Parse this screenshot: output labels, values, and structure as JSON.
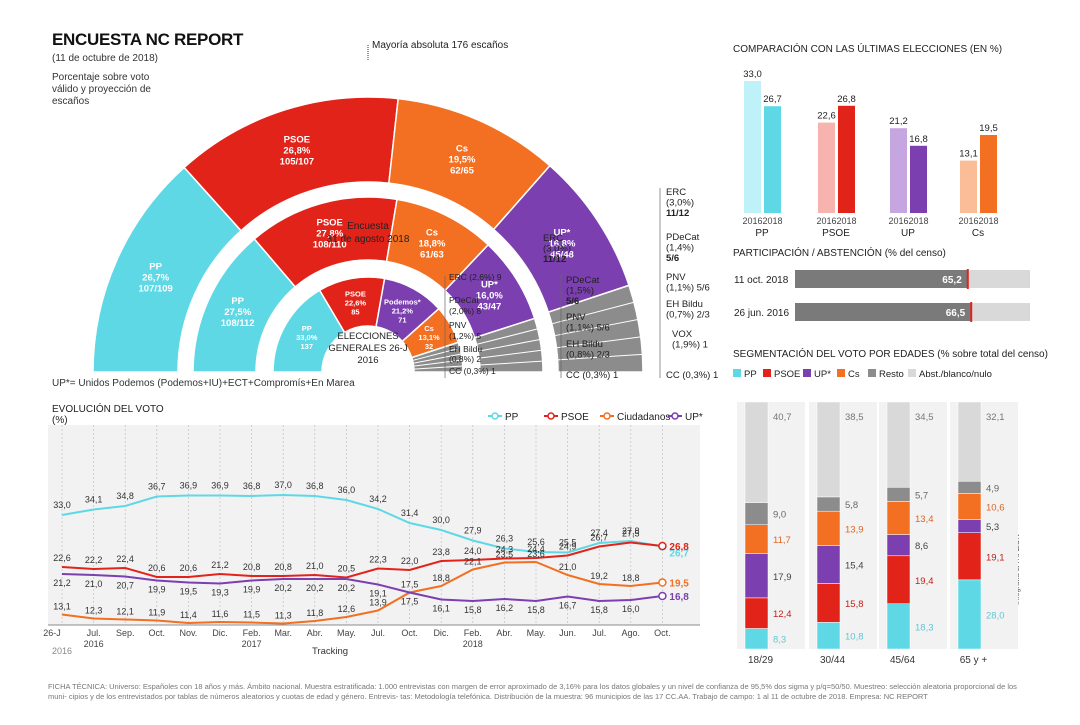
{
  "header": {
    "title": "ENCUESTA NC REPORT",
    "date": "(11 de octubre de 2018)",
    "subtitle": "Porcentaje sobre voto válido y proyección de escaños",
    "majority": "Mayoría absoluta 176 escaños",
    "up_note": "UP*= Unidos Podemos (Podemos+IU)+ECT+Compromís+En Marea",
    "credit": "Infografía LA RAZÓN"
  },
  "colors": {
    "pp": "#5fd8e6",
    "psoe": "#e2231a",
    "up": "#7b3fb0",
    "cs": "#f36f21",
    "resto": "#8c8c8c",
    "abs": "#d9d9d9"
  },
  "chart_data": [
    {
      "type": "pie",
      "title": "Porcentaje sobre voto válido y proyección de escaños",
      "rings": [
        {
          "name": "Outer",
          "slices": [
            {
              "party": "PP",
              "value": 26.7,
              "pct_label": "26,7%",
              "seats": "107/109"
            },
            {
              "party": "PSOE",
              "value": 26.8,
              "pct_label": "26,8%",
              "seats": "105/107"
            },
            {
              "party": "Cs",
              "value": 19.5,
              "pct_label": "19,5%",
              "seats": "62/65"
            },
            {
              "party": "UP*",
              "value": 16.8,
              "pct_label": "16,8%",
              "seats": "45/48"
            },
            {
              "party": "Resto",
              "value": 10.2,
              "pct_label": "",
              "seats": ""
            }
          ],
          "others": [
            {
              "name": "ERC",
              "pct": "(3,0%)",
              "seats": "11/12"
            },
            {
              "name": "PDeCat",
              "pct": "(1,4%)",
              "seats": "5/6"
            },
            {
              "name": "PNV",
              "pct": "(1,1%)",
              "seats": "5/6"
            },
            {
              "name": "EH Bildu",
              "pct": "(0,7%)",
              "seats": "2/3"
            },
            {
              "name": "VOX",
              "pct": "(1,9%)",
              "seats": "1"
            },
            {
              "name": "CC",
              "pct": "(0,3%)",
              "seats": "1"
            }
          ]
        },
        {
          "name": "Encuesta 31 de agosto 2018",
          "slices": [
            {
              "party": "PP",
              "value": 27.5,
              "pct_label": "27,5%",
              "seats": "108/112"
            },
            {
              "party": "PSOE",
              "value": 27.8,
              "pct_label": "27,8%",
              "seats": "108/110"
            },
            {
              "party": "Cs",
              "value": 18.8,
              "pct_label": "18,8%",
              "seats": "61/63"
            },
            {
              "party": "UP*",
              "value": 16.0,
              "pct_label": "16,0%",
              "seats": "43/47"
            },
            {
              "party": "Resto",
              "value": 9.9,
              "pct_label": "",
              "seats": ""
            }
          ],
          "others": [
            {
              "name": "ERC",
              "pct": "(3,0%)",
              "seats": "11/12"
            },
            {
              "name": "PDeCat",
              "pct": "(1,5%)",
              "seats": "5/6"
            },
            {
              "name": "PNV",
              "pct": "(1,1%)",
              "seats": "5/6"
            },
            {
              "name": "EH Bildu",
              "pct": "(0,8%)",
              "seats": "2/3"
            },
            {
              "name": "CC",
              "pct": "(0,3%)",
              "seats": "1"
            }
          ]
        },
        {
          "name": "ELECCIONES GENERALES 26-J 2016",
          "slices": [
            {
              "party": "PP",
              "value": 33.0,
              "pct_label": "33,0%",
              "seats": "137"
            },
            {
              "party": "PSOE",
              "value": 22.6,
              "pct_label": "22,6%",
              "seats": "85"
            },
            {
              "party": "Podemos*",
              "value": 21.2,
              "pct_label": "21,2%",
              "seats": "71"
            },
            {
              "party": "Cs",
              "value": 13.1,
              "pct_label": "13,1%",
              "seats": "32"
            },
            {
              "party": "Resto",
              "value": 10.1,
              "pct_label": "",
              "seats": ""
            }
          ],
          "others": [
            {
              "name": "ERC",
              "pct": "(2,6%)",
              "seats": "9"
            },
            {
              "name": "PDeCat",
              "pct": "(2,0%)",
              "seats": "8"
            },
            {
              "name": "PNV",
              "pct": "(1,2%)",
              "seats": "5"
            },
            {
              "name": "EH Bildu",
              "pct": "(0,8%)",
              "seats": "2"
            },
            {
              "name": "CC",
              "pct": "(0,3%)",
              "seats": "1"
            }
          ]
        }
      ]
    },
    {
      "type": "bar",
      "title": "COMPARACIÓN CON LAS ÚLTIMAS ELECCIONES (EN %)",
      "groups": [
        "PP",
        "PSOE",
        "UP",
        "Cs"
      ],
      "categories": [
        "2016",
        "2018"
      ],
      "values": [
        {
          "party": "PP",
          "y2016": 33.0,
          "y2018": 26.7,
          "l2016": "33,0",
          "l2018": "26,7"
        },
        {
          "party": "PSOE",
          "y2016": 22.6,
          "y2018": 26.8,
          "l2016": "22,6",
          "l2018": "26,8"
        },
        {
          "party": "UP",
          "y2016": 21.2,
          "y2018": 16.8,
          "l2016": "21,2",
          "l2018": "16,8"
        },
        {
          "party": "Cs",
          "y2016": 13.1,
          "y2018": 19.5,
          "l2016": "13,1",
          "l2018": "19,5"
        }
      ]
    },
    {
      "type": "bar",
      "title": "PARTICIPACIÓN / ABSTENCIÓN (% del censo)",
      "rows": [
        {
          "label": "11 oct. 2018",
          "participacion": 65.2,
          "abstencion": 34.8,
          "lp": "65,2",
          "la": "34,8"
        },
        {
          "label": "26 jun. 2016",
          "participacion": 66.5,
          "abstencion": 33.5,
          "lp": "66,5",
          "la": "33,5"
        }
      ]
    },
    {
      "type": "bar",
      "title": "SEGMENTACIÓN DEL VOTO POR EDADES (% sobre total del censo)",
      "legend": [
        "PP",
        "PSOE",
        "UP*",
        "Cs",
        "Resto",
        "Abst./blanco/nulo"
      ],
      "categories": [
        "18/29",
        "30/44",
        "45/64",
        "65 y +"
      ],
      "series": [
        {
          "name": "PP",
          "values": [
            8.3,
            10.8,
            18.3,
            28.0
          ],
          "labels": [
            "8,3",
            "10,8",
            "18,3",
            "28,0"
          ]
        },
        {
          "name": "PSOE",
          "values": [
            12.4,
            15.8,
            19.4,
            19.1
          ],
          "labels": [
            "12,4",
            "15,8",
            "19,4",
            "19,1"
          ]
        },
        {
          "name": "UP*",
          "values": [
            17.9,
            15.4,
            8.6,
            5.3
          ],
          "labels": [
            "17,9",
            "15,4",
            "8,6",
            "5,3"
          ]
        },
        {
          "name": "Cs",
          "values": [
            11.7,
            13.9,
            13.4,
            10.6
          ],
          "labels": [
            "11,7",
            "13,9",
            "13,4",
            "10,6"
          ]
        },
        {
          "name": "Resto",
          "values": [
            9.0,
            5.8,
            5.7,
            4.9
          ],
          "labels": [
            "9,0",
            "5,8",
            "5,7",
            "4,9"
          ]
        },
        {
          "name": "Abst./blanco/nulo",
          "values": [
            40.7,
            38.5,
            34.5,
            32.1
          ],
          "labels": [
            "40,7",
            "38,5",
            "34,5",
            "32,1"
          ]
        }
      ]
    },
    {
      "type": "line",
      "title": "EVOLUCIÓN DEL VOTO",
      "ylabel": "(%)",
      "xlabel": "Tracking",
      "x": [
        "26-J",
        "Jul.",
        "Sep.",
        "Oct.",
        "Nov.",
        "Dic.",
        "Feb.",
        "Mar.",
        "Abr.",
        "May.",
        "Jul.",
        "Oct.",
        "Dic.",
        "Feb.",
        "Abr.",
        "May.",
        "Jun.",
        "Jul.",
        "Ago.",
        "Oct."
      ],
      "x_sub": [
        "",
        "2016",
        "",
        "",
        "",
        "",
        "2017",
        "",
        "",
        "",
        "",
        "",
        "",
        "2018",
        "",
        "",
        "",
        "",
        "",
        ""
      ],
      "x_year_left": "2016",
      "series": [
        {
          "name": "PP",
          "values": [
            33.0,
            34.1,
            34.8,
            36.7,
            36.9,
            36.9,
            36.8,
            37.0,
            36.8,
            36.0,
            34.2,
            31.4,
            30.0,
            27.9,
            26.3,
            25.6,
            25.5,
            27.4,
            27.8,
            26.7
          ],
          "labels": [
            "33,0",
            "34,1",
            "34,8",
            "36,7",
            "36,9",
            "36,9",
            "36,8",
            "37,0",
            "36,8",
            "36,0",
            "34,2",
            "31,4",
            "30,0",
            "27,9",
            "26,3",
            "25,6",
            "25,5",
            "27,4",
            "27,8",
            "26,7"
          ]
        },
        {
          "name": "PSOE",
          "values": [
            22.6,
            22.2,
            22.4,
            20.6,
            20.6,
            21.2,
            20.8,
            20.8,
            21.0,
            20.5,
            22.3,
            22.0,
            23.8,
            24.0,
            24.3,
            24.4,
            24.9,
            26.7,
            27.5,
            26.8
          ],
          "labels": [
            "22,6",
            "22,2",
            "22,4",
            "20,6",
            "20,6",
            "21,2",
            "20,8",
            "20,8",
            "21,0",
            "20,5",
            "22,3",
            "22,0",
            "23,8",
            "24,0",
            "24,3",
            "24,4",
            "24,9",
            "26,7",
            "27,5",
            "26,8"
          ]
        },
        {
          "name": "Ciudadanos",
          "values": [
            13.1,
            12.3,
            12.1,
            11.9,
            11.4,
            11.6,
            11.5,
            11.3,
            11.8,
            12.6,
            13.9,
            17.5,
            18.8,
            22.1,
            23.5,
            23.6,
            21.0,
            19.2,
            18.8,
            19.5
          ],
          "labels": [
            "13,1",
            "12,3",
            "12,1",
            "11,9",
            "11,4",
            "11,6",
            "11,5",
            "11,3",
            "11,8",
            "12,6",
            "13,9",
            "17,5",
            "18,8",
            "22,1",
            "23,5",
            "23,6",
            "21,0",
            "19,2",
            "18,8",
            "19,5"
          ]
        },
        {
          "name": "UP*",
          "values": [
            21.2,
            21.0,
            20.7,
            19.9,
            19.5,
            19.3,
            19.9,
            20.2,
            20.2,
            20.2,
            19.1,
            17.5,
            16.1,
            15.8,
            16.2,
            15.8,
            16.7,
            15.8,
            16.0,
            16.8
          ],
          "labels": [
            "21,2",
            "21,0",
            "20,7",
            "19,9",
            "19,5",
            "19,3",
            "19,9",
            "20,2",
            "20,2",
            "20,2",
            "19,1",
            "17,5",
            "16,1",
            "15,8",
            "16,2",
            "15,8",
            "16,7",
            "15,8",
            "16,0",
            "16,8"
          ]
        }
      ]
    }
  ],
  "footer": "FICHA TÉCNICA: Universo: Españoles con 18 años y más. Ámbito nacional. Muestra estratificada: 1.000 entrevistas con margen de error aproximado de 3,16% para los datos globales y un nivel de confianza de 95,5% dos sigma y p/q=50/50. Muestreo: selección aleatoria proporcional de los muni- cipios y de los entrevistados por tablas de números aleatorios y cuotas de edad y género. Entrevis- tas: Metodología telefónica. Distribución de la muestra: 96 municipios de las 17 CC.AA. Trabajo de campo: 1 al 11 de octubre de 2018. Empresa: NC REPORT"
}
